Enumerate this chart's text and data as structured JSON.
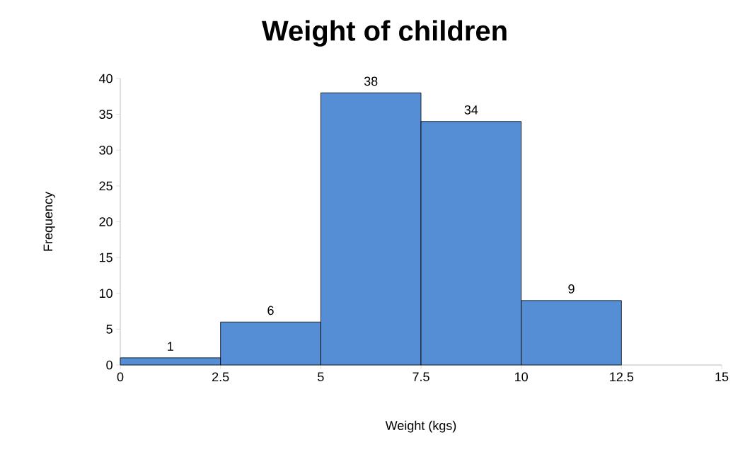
{
  "chart_data": {
    "type": "histogram",
    "title": "Weight of children",
    "xlabel": "Weight (kgs)",
    "ylabel": "Frequency",
    "bins": [
      0,
      2.5,
      5,
      7.5,
      10,
      12.5
    ],
    "values": [
      1,
      6,
      38,
      34,
      9
    ],
    "color": "#558ed5",
    "data_labels": true,
    "xlim": [
      0,
      15
    ],
    "xticks": [
      0,
      2.5,
      5,
      7.5,
      10,
      12.5,
      15
    ],
    "ylim": [
      0,
      40
    ],
    "yticks": [
      0,
      5,
      10,
      15,
      20,
      25,
      30,
      35,
      40
    ],
    "grid": false
  }
}
